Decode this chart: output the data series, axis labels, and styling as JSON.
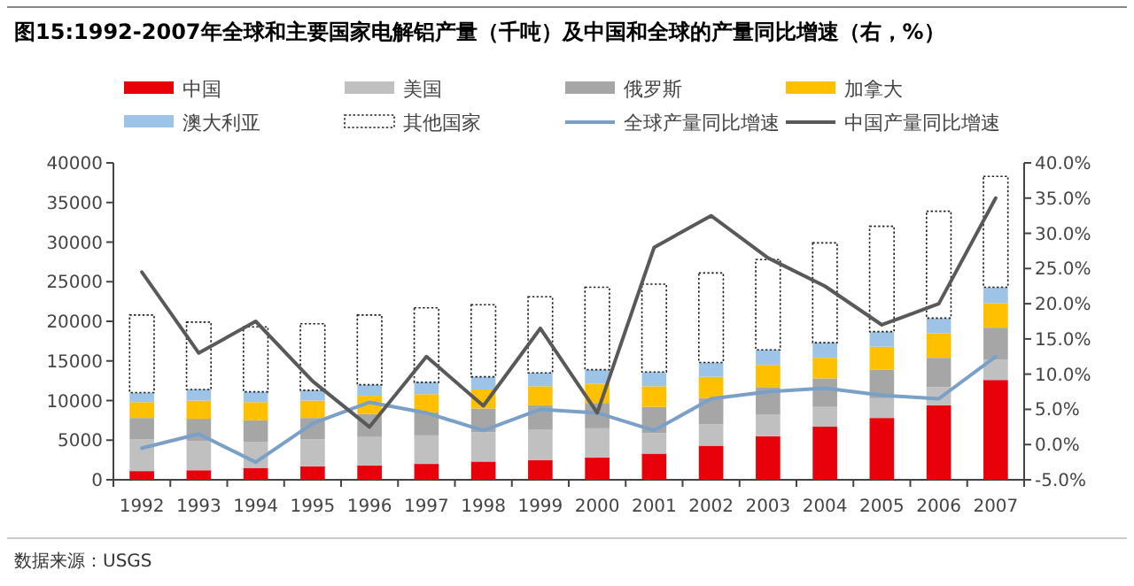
{
  "chart_data": {
    "type": "bar",
    "stacked": true,
    "title": "图15:1992-2007年全球和主要国家电解铝产量（千吨）及中国和全球的产量同比增速（右，%）",
    "categories": [
      "1992",
      "1993",
      "1994",
      "1995",
      "1996",
      "1997",
      "1998",
      "1999",
      "2000",
      "2001",
      "2002",
      "2003",
      "2004",
      "2005",
      "2006",
      "2007"
    ],
    "series": [
      {
        "name": "中国",
        "color": "#e8000b",
        "values": [
          1100,
          1200,
          1500,
          1700,
          1800,
          2000,
          2300,
          2500,
          2800,
          3300,
          4300,
          5500,
          6700,
          7800,
          9400,
          12600
        ]
      },
      {
        "name": "美国",
        "color": "#c0c0c0",
        "values": [
          4000,
          3700,
          3300,
          3400,
          3600,
          3600,
          3700,
          3800,
          3700,
          2600,
          2700,
          2700,
          2500,
          2500,
          2300,
          2600
        ]
      },
      {
        "name": "俄罗斯",
        "color": "#a6a6a6",
        "values": [
          2700,
          2800,
          2700,
          2700,
          2900,
          2900,
          3000,
          3100,
          3200,
          3300,
          3300,
          3500,
          3600,
          3600,
          3700,
          4000
        ]
      },
      {
        "name": "加拿大",
        "color": "#ffc000",
        "values": [
          2000,
          2300,
          2300,
          2200,
          2300,
          2300,
          2400,
          2400,
          2400,
          2600,
          2700,
          2800,
          2600,
          2900,
          3100,
          3100
        ]
      },
      {
        "name": "澳大利亚",
        "color": "#9dc3e6",
        "values": [
          1200,
          1400,
          1300,
          1300,
          1400,
          1500,
          1600,
          1700,
          1800,
          1800,
          1800,
          1900,
          1900,
          1900,
          1900,
          2000
        ]
      },
      {
        "name": "其他国家",
        "color": "#ffffff",
        "line_style": "dotted",
        "values": [
          9800,
          8500,
          8200,
          8400,
          8800,
          9400,
          9100,
          9600,
          10400,
          11100,
          11300,
          11400,
          12600,
          13300,
          13500,
          14000
        ]
      },
      {
        "name": "全球产量同比增速",
        "type": "line",
        "axis": "y2",
        "color": "#7ba0c8",
        "values": [
          -0.5,
          1.5,
          -2.5,
          3,
          6,
          4.5,
          2,
          5,
          4.5,
          2,
          6.5,
          7.5,
          8,
          7,
          6.5,
          12.5
        ]
      },
      {
        "name": "中国产量同比增速",
        "type": "line",
        "axis": "y2",
        "color": "#595959",
        "values": [
          24.5,
          13,
          17.5,
          9,
          2.5,
          12.5,
          5.5,
          16.5,
          4.5,
          28,
          32.5,
          26.5,
          22.5,
          17,
          20,
          35
        ]
      }
    ],
    "ylim": [
      0,
      40000
    ],
    "yticks": [
      0,
      5000,
      10000,
      15000,
      20000,
      25000,
      30000,
      35000,
      40000
    ],
    "y2lim": [
      -5,
      40
    ],
    "y2ticks": [
      {
        "value": -5,
        "label": "-5.0%"
      },
      {
        "value": 0,
        "label": "0.0%"
      },
      {
        "value": 5,
        "label": "5.0%"
      },
      {
        "value": 10,
        "label": "10.0%"
      },
      {
        "value": 15,
        "label": "15.0%"
      },
      {
        "value": 20,
        "label": "20.0%"
      },
      {
        "value": 25,
        "label": "25.0%"
      },
      {
        "value": 30,
        "label": "30.0%"
      },
      {
        "value": 35,
        "label": "35.0%"
      },
      {
        "value": 40,
        "label": "40.0%"
      }
    ],
    "legend": "top",
    "annotations": [
      "数据来源：USGS"
    ]
  }
}
